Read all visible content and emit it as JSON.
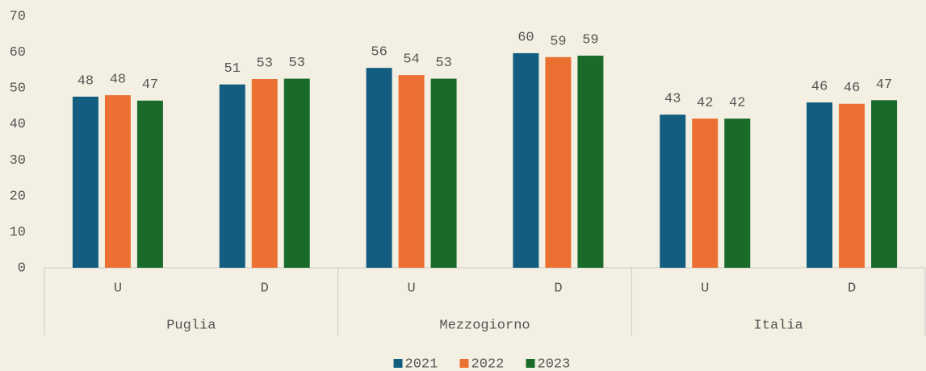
{
  "chart_data": {
    "type": "bar",
    "categories": [
      "U",
      "D",
      "U",
      "D",
      "U",
      "D"
    ],
    "groups": [
      "Puglia",
      "Mezzogiorno",
      "Italia"
    ],
    "series": [
      {
        "name": "2021",
        "color": "#135e80",
        "values": [
          47.6,
          51.0,
          55.6,
          59.7,
          42.6,
          46.0
        ],
        "value_labels": [
          "48",
          "51",
          "56",
          "60",
          "43",
          "46"
        ]
      },
      {
        "name": "2022",
        "color": "#ec7031",
        "values": [
          48.0,
          52.5,
          53.6,
          58.6,
          41.5,
          45.6
        ],
        "value_labels": [
          "48",
          "53",
          "54",
          "59",
          "42",
          "46"
        ]
      },
      {
        "name": "2023",
        "color": "#1a6b29",
        "values": [
          46.5,
          52.6,
          52.6,
          59.0,
          41.5,
          46.6
        ],
        "value_labels": [
          "47",
          "53",
          "53",
          "59",
          "42",
          "47"
        ]
      }
    ],
    "ylim": [
      0,
      70
    ],
    "yticks": [
      0,
      10,
      20,
      30,
      40,
      50,
      60,
      70
    ],
    "grid": false,
    "legend": "bottom"
  }
}
